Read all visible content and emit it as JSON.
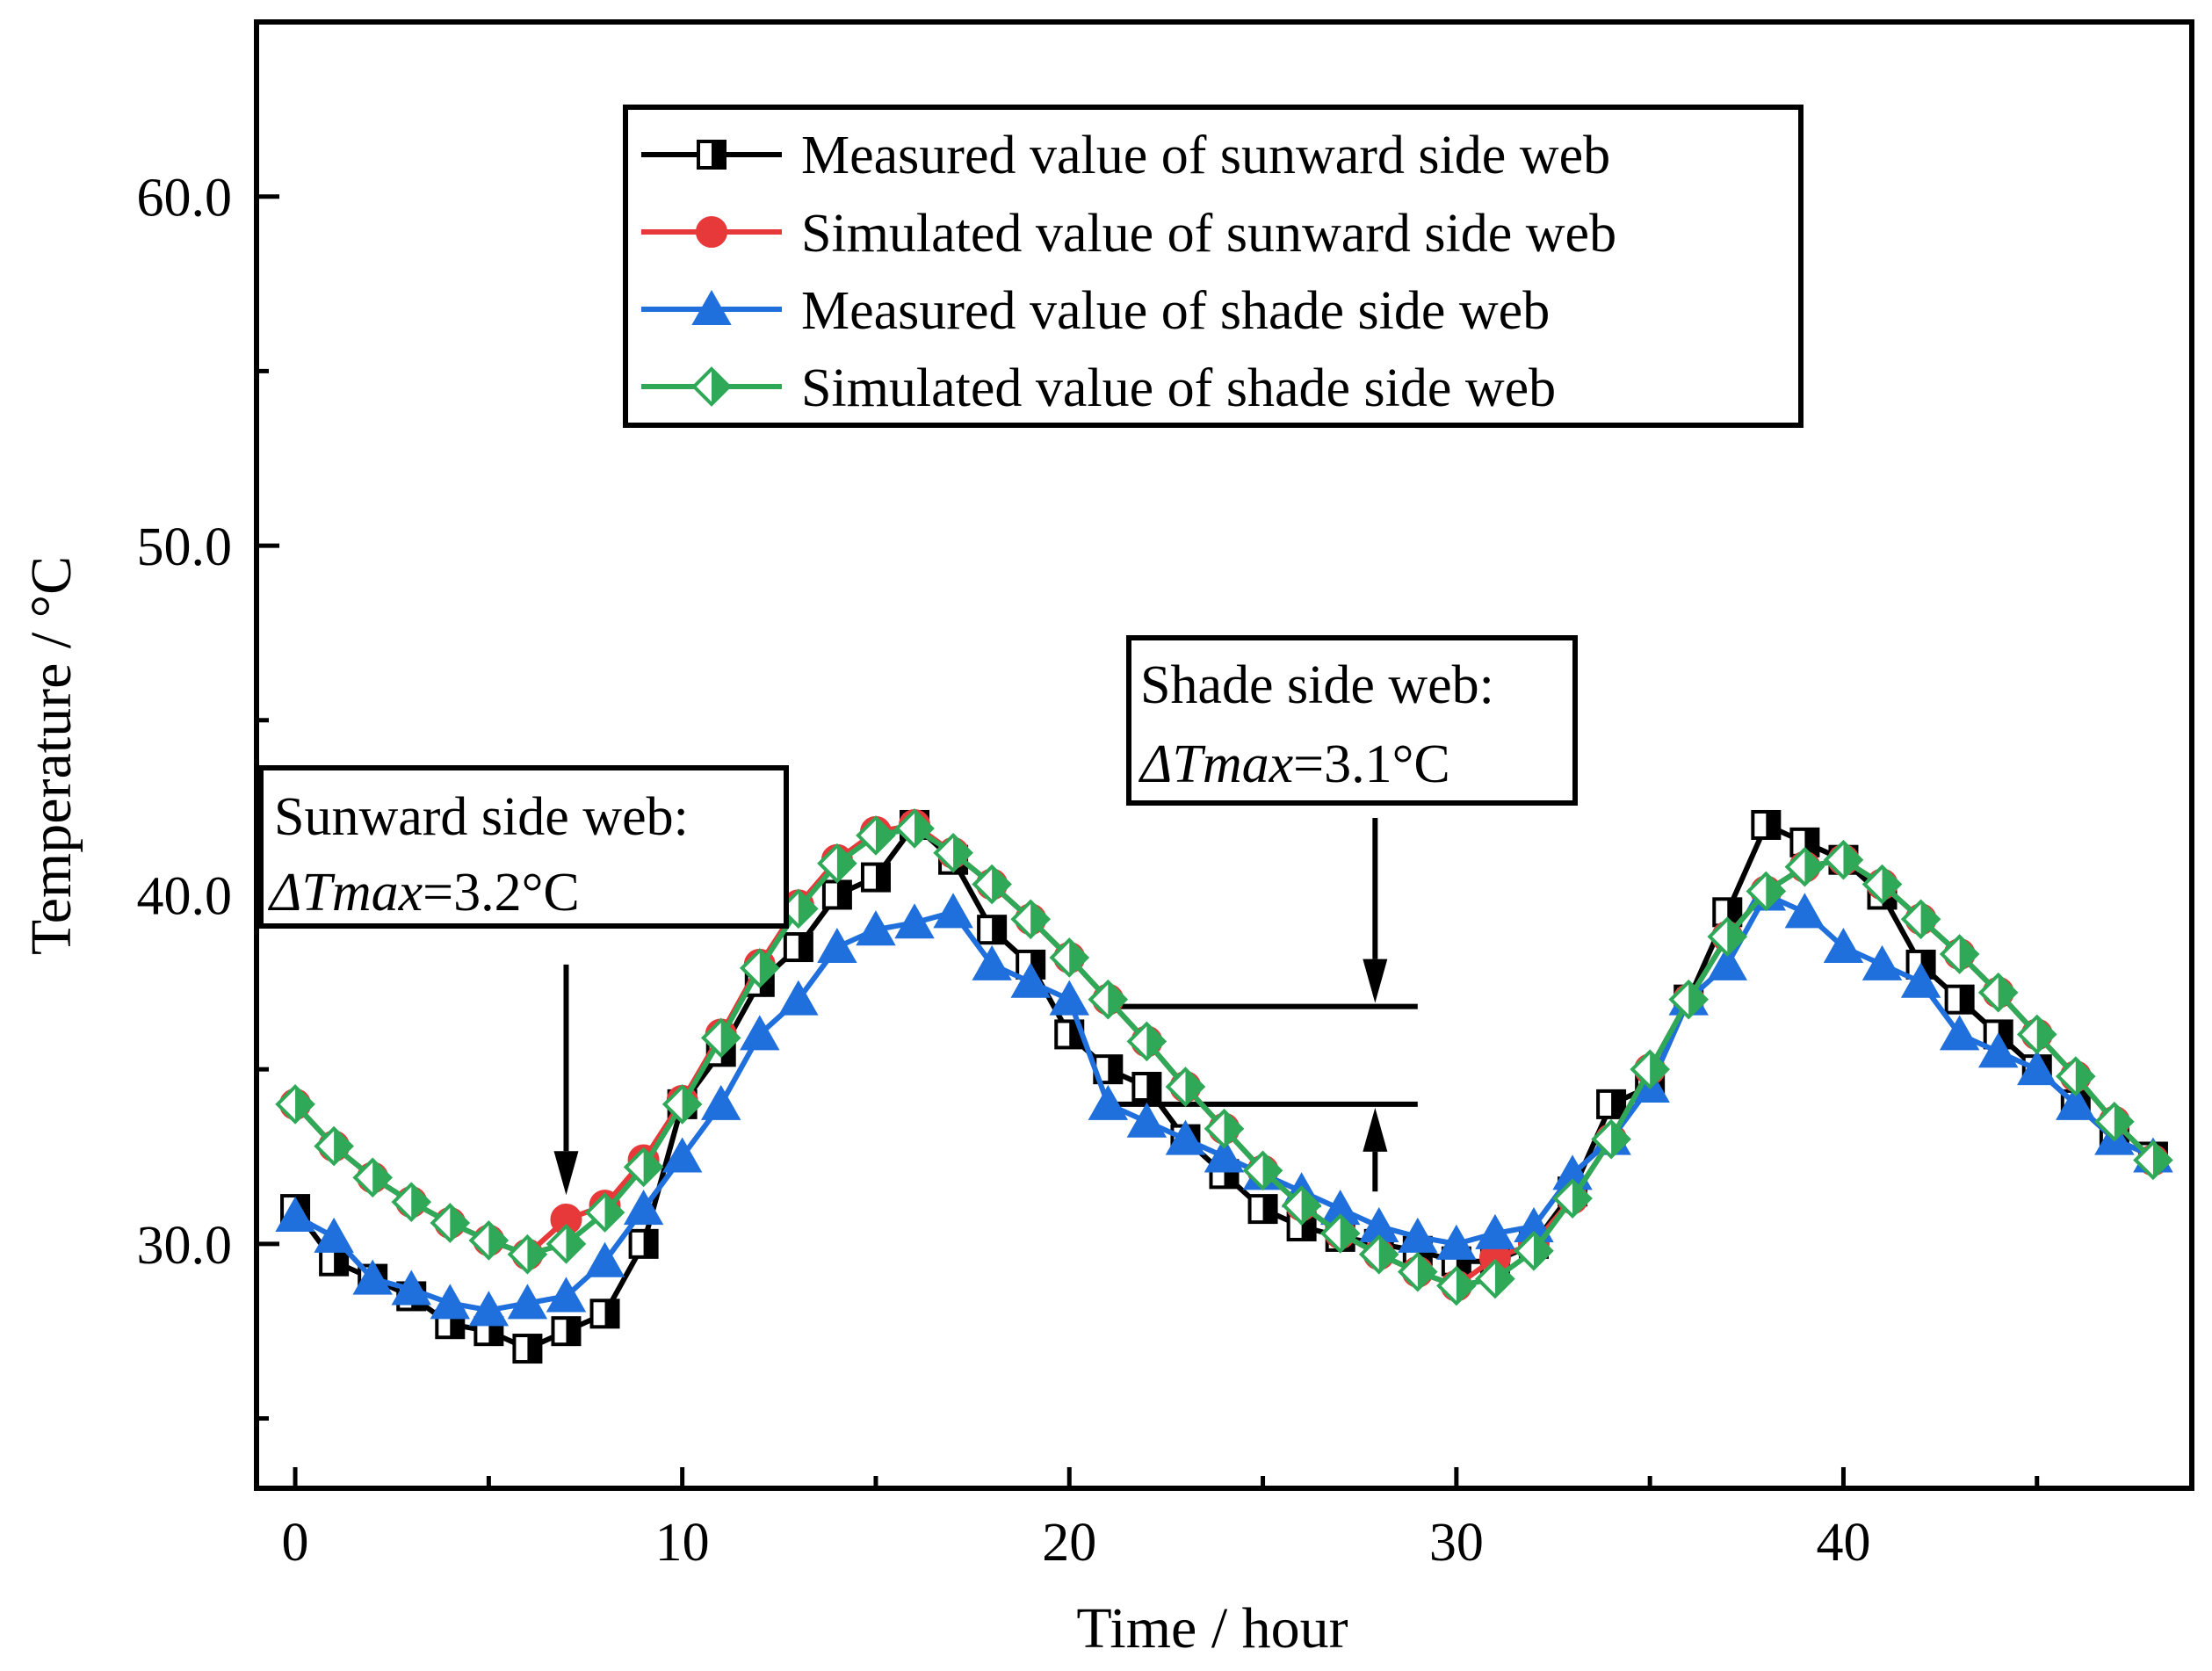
{
  "chart_data": {
    "type": "line",
    "xlabel": "Time / hour",
    "ylabel": "Temperature / °C",
    "xlim": [
      -1,
      49
    ],
    "ylim": [
      23,
      65
    ],
    "x_ticks": [
      0,
      10,
      20,
      30,
      40
    ],
    "x_tick_labels": [
      "0",
      "10",
      "20",
      "30",
      "40"
    ],
    "y_ticks": [
      30,
      40,
      50,
      60
    ],
    "y_tick_labels": [
      "30.0",
      "40.0",
      "50.0",
      "60.0"
    ],
    "legend_position": "top-center",
    "series": [
      {
        "name": "Measured value of sunward side web",
        "color": "#000000",
        "marker": "half-filled-square",
        "x": [
          0,
          1,
          2,
          3,
          4,
          5,
          6,
          7,
          8,
          9,
          10,
          11,
          12,
          13,
          14,
          15,
          16,
          17,
          18,
          19,
          20,
          21,
          22,
          23,
          24,
          25,
          26,
          27,
          28,
          29,
          30,
          31,
          32,
          33,
          34,
          35,
          36,
          37,
          38,
          39,
          40,
          41,
          42,
          43,
          44,
          45,
          46,
          47,
          48
        ],
        "values": [
          31.0,
          29.5,
          29.0,
          28.5,
          27.7,
          27.5,
          27.0,
          27.5,
          28.0,
          30.0,
          34.0,
          35.5,
          37.5,
          38.5,
          40.0,
          40.5,
          42.0,
          41.0,
          39.0,
          38.0,
          36.0,
          35.0,
          34.5,
          33.0,
          32.0,
          31.0,
          30.5,
          30.2,
          30.0,
          29.8,
          29.5,
          29.5,
          30.0,
          31.5,
          34.0,
          34.5,
          37.0,
          39.5,
          42.0,
          41.5,
          41.0,
          40.0,
          38.0,
          37.0,
          36.0,
          35.0,
          34.0,
          33.0,
          32.5
        ]
      },
      {
        "name": "Simulated value of sunward side web",
        "color": "#e8393a",
        "marker": "circle",
        "x": [
          0,
          1,
          2,
          3,
          4,
          5,
          6,
          7,
          8,
          9,
          10,
          11,
          12,
          13,
          14,
          15,
          16,
          17,
          18,
          19,
          20,
          21,
          22,
          23,
          24,
          25,
          26,
          27,
          28,
          29,
          30,
          31,
          32,
          33,
          34,
          35,
          36,
          37,
          38,
          39,
          40,
          41,
          42,
          43,
          44,
          45,
          46,
          47,
          48
        ],
        "values": [
          34.0,
          32.8,
          31.9,
          31.2,
          30.6,
          30.1,
          29.7,
          30.7,
          31.1,
          32.4,
          34.1,
          36.0,
          38.0,
          39.7,
          41.0,
          41.8,
          42.0,
          41.2,
          40.3,
          39.3,
          38.2,
          37.0,
          35.8,
          34.5,
          33.3,
          32.1,
          31.1,
          30.3,
          29.7,
          29.2,
          28.8,
          29.6,
          30.0,
          31.3,
          33.0,
          35.0,
          37.0,
          38.8,
          40.1,
          40.8,
          41.0,
          40.3,
          39.3,
          38.3,
          37.2,
          36.0,
          34.8,
          33.5,
          32.4
        ]
      },
      {
        "name": "Measured value of shade side web",
        "color": "#1f6fdc",
        "marker": "triangle",
        "x": [
          0,
          1,
          2,
          3,
          4,
          5,
          6,
          7,
          8,
          9,
          10,
          11,
          12,
          13,
          14,
          15,
          16,
          17,
          18,
          19,
          20,
          21,
          22,
          23,
          24,
          25,
          26,
          27,
          28,
          29,
          30,
          31,
          32,
          33,
          34,
          35,
          36,
          37,
          38,
          39,
          40,
          41,
          42,
          43,
          44,
          45,
          46,
          47,
          48
        ],
        "values": [
          30.8,
          30.2,
          29.0,
          28.7,
          28.3,
          28.1,
          28.3,
          28.5,
          29.5,
          31.0,
          32.5,
          34.0,
          36.0,
          37.0,
          38.5,
          39.0,
          39.2,
          39.5,
          38.0,
          37.5,
          37.0,
          34.0,
          33.5,
          33.0,
          32.5,
          32.0,
          31.5,
          31.0,
          30.5,
          30.2,
          30.0,
          30.3,
          30.5,
          32.0,
          33.0,
          34.5,
          37.0,
          38.0,
          40.0,
          39.5,
          38.5,
          38.0,
          37.5,
          36.0,
          35.5,
          35.0,
          34.0,
          33.0,
          32.5
        ]
      },
      {
        "name": "Simulated value of shade side web",
        "color": "#2fa857",
        "marker": "half-filled-diamond",
        "x": [
          0,
          1,
          2,
          3,
          4,
          5,
          6,
          7,
          8,
          9,
          10,
          11,
          12,
          13,
          14,
          15,
          16,
          17,
          18,
          19,
          20,
          21,
          22,
          23,
          24,
          25,
          26,
          27,
          28,
          29,
          30,
          31,
          32,
          33,
          34,
          35,
          36,
          37,
          38,
          39,
          40,
          41,
          42,
          43,
          44,
          45,
          46,
          47,
          48
        ],
        "values": [
          34.0,
          32.8,
          31.9,
          31.2,
          30.6,
          30.1,
          29.7,
          30.0,
          30.9,
          32.2,
          34.0,
          35.9,
          37.9,
          39.6,
          40.9,
          41.7,
          41.9,
          41.2,
          40.3,
          39.3,
          38.2,
          37.0,
          35.8,
          34.5,
          33.3,
          32.1,
          31.1,
          30.3,
          29.7,
          29.2,
          28.8,
          29.0,
          29.8,
          31.3,
          33.0,
          35.0,
          37.0,
          38.8,
          40.1,
          40.8,
          41.0,
          40.3,
          39.3,
          38.3,
          37.2,
          36.0,
          34.8,
          33.5,
          32.4
        ]
      }
    ],
    "annotations": [
      {
        "id": "sunward",
        "line1": "Sunward side web:",
        "delta_label": "ΔTmax",
        "delta_value": "=3.2°C"
      },
      {
        "id": "shade",
        "line1": "Shade side web:",
        "delta_label": "ΔTmax",
        "delta_value": "=3.1°C"
      }
    ],
    "reference_lines": [
      {
        "y": 36.8,
        "x_from": 21,
        "x_to": 29
      },
      {
        "y": 34.0,
        "x_from": 21,
        "x_to": 29
      }
    ],
    "arrows": [
      {
        "x": 7,
        "y_from": 38.0,
        "y_to": 31.4,
        "direction": "down"
      },
      {
        "x": 27.9,
        "y_from": 42.2,
        "y_to": 36.9,
        "direction": "down"
      },
      {
        "x": 27.9,
        "y_from": 31.5,
        "y_to": 33.9,
        "direction": "up"
      }
    ]
  }
}
